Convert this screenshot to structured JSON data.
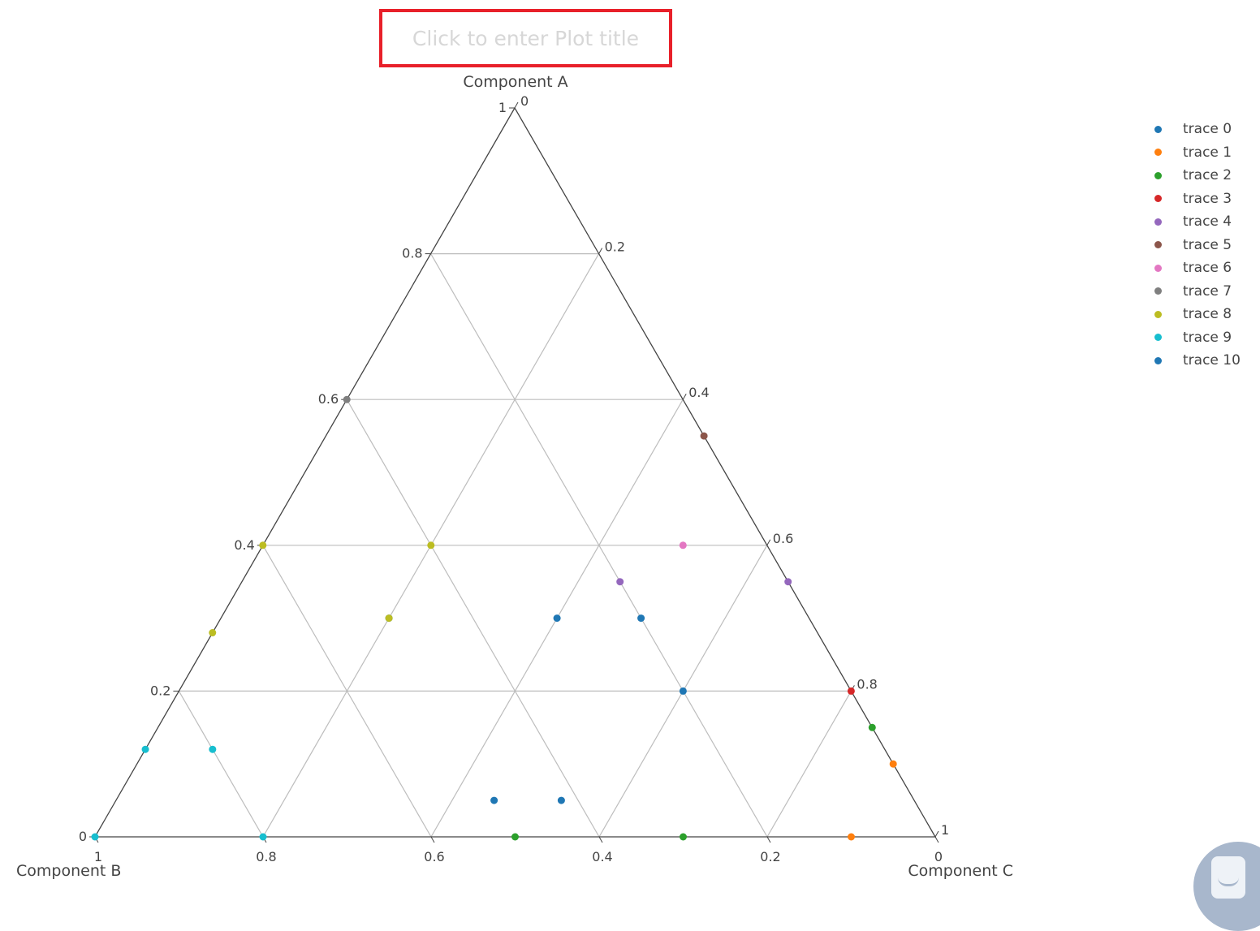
{
  "title_placeholder": "Click to enter Plot title",
  "legend": [
    {
      "label": "trace 0",
      "color": "#1f77b4"
    },
    {
      "label": "trace 1",
      "color": "#ff7f0e"
    },
    {
      "label": "trace 2",
      "color": "#2ca02c"
    },
    {
      "label": "trace 3",
      "color": "#d62728"
    },
    {
      "label": "trace 4",
      "color": "#9467bd"
    },
    {
      "label": "trace 5",
      "color": "#8c564b"
    },
    {
      "label": "trace 6",
      "color": "#e377c2"
    },
    {
      "label": "trace 7",
      "color": "#7f7f7f"
    },
    {
      "label": "trace 8",
      "color": "#bcbd22"
    },
    {
      "label": "trace 9",
      "color": "#17becf"
    },
    {
      "label": "trace 10",
      "color": "#1f77b4"
    }
  ],
  "chat_widget_icon": "chat-icon",
  "chart_data": {
    "type": "scatter",
    "subtype": "ternary",
    "title": "",
    "grid": true,
    "legend_position": "top-right",
    "axes": {
      "a": {
        "title": "Component A",
        "ticks": [
          "0",
          "0.2",
          "0.4",
          "0.6",
          "0.8",
          "1"
        ],
        "range": [
          0,
          1
        ]
      },
      "b": {
        "title": "Component B",
        "ticks": [
          "0",
          "0.2",
          "0.4",
          "0.6",
          "0.8",
          "1"
        ],
        "range": [
          0,
          1
        ]
      },
      "c": {
        "title": "Component C",
        "ticks": [
          "0",
          "0.2",
          "0.4",
          "0.6",
          "0.8",
          "1"
        ],
        "range": [
          0,
          1
        ]
      }
    },
    "series": [
      {
        "name": "trace 0",
        "color": "#1f77b4",
        "points": [
          {
            "a": 0.3,
            "b": 0.5,
            "c": 0.2
          },
          {
            "a": 0.3,
            "b": 0.2,
            "c": 0.5
          },
          {
            "a": 0.05,
            "b": 0.5,
            "c": 0.45
          },
          {
            "a": 0.05,
            "b": 0.42,
            "c": 0.53
          }
        ]
      },
      {
        "name": "trace 1",
        "color": "#ff7f0e",
        "points": [
          {
            "a": 0.1,
            "b": 0.0,
            "c": 0.9
          },
          {
            "a": 0.0,
            "b": 0.1,
            "c": 0.9
          }
        ]
      },
      {
        "name": "trace 2",
        "color": "#2ca02c",
        "points": [
          {
            "a": 0.15,
            "b": 0.0,
            "c": 0.85
          },
          {
            "a": 0.0,
            "b": 0.3,
            "c": 0.7
          },
          {
            "a": 0.0,
            "b": 0.5,
            "c": 0.5
          }
        ]
      },
      {
        "name": "trace 3",
        "color": "#d62728",
        "points": [
          {
            "a": 0.2,
            "b": 0.0,
            "c": 0.8
          }
        ]
      },
      {
        "name": "trace 4",
        "color": "#9467bd",
        "points": [
          {
            "a": 0.35,
            "b": 0.0,
            "c": 0.65
          },
          {
            "a": 0.35,
            "b": 0.2,
            "c": 0.45
          }
        ]
      },
      {
        "name": "trace 5",
        "color": "#8c564b",
        "points": [
          {
            "a": 0.55,
            "b": 0.0,
            "c": 0.45
          }
        ]
      },
      {
        "name": "trace 6",
        "color": "#e377c2",
        "points": [
          {
            "a": 0.4,
            "b": 0.1,
            "c": 0.5
          }
        ]
      },
      {
        "name": "trace 7",
        "color": "#7f7f7f",
        "points": [
          {
            "a": 0.6,
            "b": 0.4,
            "c": 0.0
          }
        ]
      },
      {
        "name": "trace 8",
        "color": "#bcbd22",
        "points": [
          {
            "a": 0.4,
            "b": 0.6,
            "c": 0.0
          },
          {
            "a": 0.4,
            "b": 0.4,
            "c": 0.2
          },
          {
            "a": 0.3,
            "b": 0.5,
            "c": 0.2
          },
          {
            "a": 0.28,
            "b": 0.72,
            "c": 0.0
          }
        ]
      },
      {
        "name": "trace 9",
        "color": "#17becf",
        "points": [
          {
            "a": 0.12,
            "b": 0.88,
            "c": 0.0
          },
          {
            "a": 0.12,
            "b": 0.8,
            "c": 0.08
          },
          {
            "a": 0.0,
            "b": 0.8,
            "c": 0.2
          },
          {
            "a": 0.0,
            "b": 1.0,
            "c": 0.0
          }
        ]
      },
      {
        "name": "trace 10",
        "color": "#1f77b4",
        "points": [
          {
            "a": 0.3,
            "b": 0.3,
            "c": 0.4
          },
          {
            "a": 0.2,
            "b": 0.2,
            "c": 0.6
          }
        ]
      }
    ]
  }
}
